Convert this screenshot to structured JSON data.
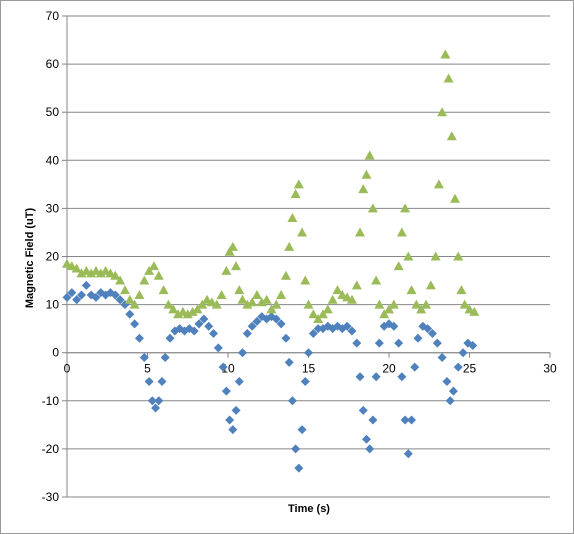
{
  "chart_data": {
    "type": "scatter",
    "title": "",
    "xlabel": "Time (s)",
    "ylabel": "Magnetic Field (uT)",
    "xlim": [
      0,
      30
    ],
    "ylim": [
      -30,
      70
    ],
    "x_ticks": [
      "0",
      "5",
      "10",
      "15",
      "20",
      "25",
      "30"
    ],
    "y_ticks": [
      "-30",
      "-20",
      "-10",
      "0",
      "10",
      "20",
      "30",
      "40",
      "50",
      "60",
      "70"
    ],
    "grid": "horizontal",
    "legend": "none",
    "series": [
      {
        "marker": "diamond",
        "color": "#4F81BD",
        "points": [
          [
            0.0,
            11.5
          ],
          [
            0.3,
            12.5
          ],
          [
            0.6,
            11.0
          ],
          [
            0.9,
            12.0
          ],
          [
            1.2,
            14.0
          ],
          [
            1.5,
            12.0
          ],
          [
            1.8,
            11.5
          ],
          [
            2.1,
            12.5
          ],
          [
            2.4,
            12.0
          ],
          [
            2.7,
            12.5
          ],
          [
            3.0,
            12.0
          ],
          [
            3.3,
            11.0
          ],
          [
            3.6,
            10.0
          ],
          [
            3.9,
            8.0
          ],
          [
            4.2,
            6.0
          ],
          [
            4.5,
            3.0
          ],
          [
            4.8,
            -1.0
          ],
          [
            5.1,
            -6.0
          ],
          [
            5.3,
            -10.0
          ],
          [
            5.5,
            -11.5
          ],
          [
            5.7,
            -10.0
          ],
          [
            5.9,
            -6.0
          ],
          [
            6.1,
            -1.0
          ],
          [
            6.4,
            3.0
          ],
          [
            6.7,
            4.5
          ],
          [
            7.0,
            5.0
          ],
          [
            7.3,
            4.5
          ],
          [
            7.6,
            5.0
          ],
          [
            7.9,
            4.5
          ],
          [
            8.2,
            6.0
          ],
          [
            8.5,
            7.0
          ],
          [
            8.8,
            5.5
          ],
          [
            9.1,
            4.0
          ],
          [
            9.4,
            1.0
          ],
          [
            9.7,
            -3.0
          ],
          [
            9.9,
            -8.0
          ],
          [
            10.1,
            -14.0
          ],
          [
            10.3,
            -16.0
          ],
          [
            10.5,
            -12.0
          ],
          [
            10.7,
            -6.0
          ],
          [
            10.9,
            0.0
          ],
          [
            11.2,
            4.0
          ],
          [
            11.5,
            5.5
          ],
          [
            11.8,
            6.5
          ],
          [
            12.1,
            7.5
          ],
          [
            12.4,
            7.0
          ],
          [
            12.7,
            7.5
          ],
          [
            13.0,
            7.0
          ],
          [
            13.3,
            6.0
          ],
          [
            13.6,
            3.0
          ],
          [
            13.8,
            -2.0
          ],
          [
            14.0,
            -10.0
          ],
          [
            14.2,
            -20.0
          ],
          [
            14.4,
            -24.0
          ],
          [
            14.6,
            -16.0
          ],
          [
            14.8,
            -6.0
          ],
          [
            15.0,
            0.0
          ],
          [
            15.3,
            4.0
          ],
          [
            15.6,
            5.0
          ],
          [
            15.9,
            5.0
          ],
          [
            16.2,
            5.5
          ],
          [
            16.5,
            5.0
          ],
          [
            16.8,
            5.5
          ],
          [
            17.1,
            5.0
          ],
          [
            17.4,
            5.5
          ],
          [
            17.7,
            4.5
          ],
          [
            18.0,
            2.0
          ],
          [
            18.2,
            -5.0
          ],
          [
            18.4,
            -12.0
          ],
          [
            18.6,
            -18.0
          ],
          [
            18.8,
            -20.0
          ],
          [
            19.0,
            -14.0
          ],
          [
            19.2,
            -5.0
          ],
          [
            19.4,
            2.0
          ],
          [
            19.7,
            5.5
          ],
          [
            20.0,
            6.0
          ],
          [
            20.3,
            5.5
          ],
          [
            20.6,
            2.0
          ],
          [
            20.8,
            -5.0
          ],
          [
            21.0,
            -14.0
          ],
          [
            21.2,
            -21.0
          ],
          [
            21.4,
            -14.0
          ],
          [
            21.6,
            -3.0
          ],
          [
            21.8,
            3.0
          ],
          [
            22.1,
            5.5
          ],
          [
            22.4,
            5.0
          ],
          [
            22.7,
            4.0
          ],
          [
            23.0,
            2.0
          ],
          [
            23.3,
            -1.0
          ],
          [
            23.6,
            -6.0
          ],
          [
            23.8,
            -10.0
          ],
          [
            24.0,
            -8.0
          ],
          [
            24.3,
            -3.0
          ],
          [
            24.6,
            0.0
          ],
          [
            24.9,
            2.0
          ],
          [
            25.2,
            1.5
          ]
        ]
      },
      {
        "marker": "triangle",
        "color": "#9BBB59",
        "points": [
          [
            0.0,
            18.5
          ],
          [
            0.3,
            18.0
          ],
          [
            0.6,
            17.5
          ],
          [
            0.9,
            16.5
          ],
          [
            1.2,
            17.0
          ],
          [
            1.5,
            16.5
          ],
          [
            1.8,
            17.0
          ],
          [
            2.1,
            16.5
          ],
          [
            2.4,
            17.0
          ],
          [
            2.7,
            16.5
          ],
          [
            3.0,
            16.0
          ],
          [
            3.3,
            15.0
          ],
          [
            3.6,
            13.0
          ],
          [
            3.9,
            11.0
          ],
          [
            4.2,
            10.0
          ],
          [
            4.5,
            12.0
          ],
          [
            4.8,
            15.0
          ],
          [
            5.1,
            17.0
          ],
          [
            5.4,
            18.0
          ],
          [
            5.7,
            16.0
          ],
          [
            6.0,
            13.0
          ],
          [
            6.3,
            10.0
          ],
          [
            6.6,
            9.0
          ],
          [
            6.9,
            8.0
          ],
          [
            7.2,
            8.5
          ],
          [
            7.5,
            8.0
          ],
          [
            7.8,
            8.5
          ],
          [
            8.1,
            9.0
          ],
          [
            8.4,
            10.0
          ],
          [
            8.7,
            11.0
          ],
          [
            9.0,
            10.5
          ],
          [
            9.3,
            10.0
          ],
          [
            9.6,
            12.0
          ],
          [
            9.9,
            17.0
          ],
          [
            10.1,
            21.0
          ],
          [
            10.3,
            22.0
          ],
          [
            10.5,
            18.0
          ],
          [
            10.7,
            13.0
          ],
          [
            10.9,
            11.0
          ],
          [
            11.2,
            10.0
          ],
          [
            11.5,
            10.5
          ],
          [
            11.8,
            12.0
          ],
          [
            12.1,
            10.5
          ],
          [
            12.4,
            11.0
          ],
          [
            12.7,
            9.0
          ],
          [
            13.0,
            10.0
          ],
          [
            13.3,
            12.0
          ],
          [
            13.6,
            16.0
          ],
          [
            13.8,
            22.0
          ],
          [
            14.0,
            28.0
          ],
          [
            14.2,
            33.0
          ],
          [
            14.4,
            35.0
          ],
          [
            14.6,
            25.0
          ],
          [
            14.8,
            15.0
          ],
          [
            15.0,
            10.0
          ],
          [
            15.3,
            8.0
          ],
          [
            15.6,
            7.0
          ],
          [
            15.9,
            8.0
          ],
          [
            16.2,
            9.0
          ],
          [
            16.5,
            11.0
          ],
          [
            16.8,
            13.0
          ],
          [
            17.1,
            12.0
          ],
          [
            17.4,
            11.5
          ],
          [
            17.7,
            11.0
          ],
          [
            18.0,
            14.0
          ],
          [
            18.2,
            25.0
          ],
          [
            18.4,
            34.0
          ],
          [
            18.6,
            37.0
          ],
          [
            18.8,
            41.0
          ],
          [
            19.0,
            30.0
          ],
          [
            19.2,
            15.0
          ],
          [
            19.4,
            10.0
          ],
          [
            19.7,
            8.0
          ],
          [
            20.0,
            9.0
          ],
          [
            20.3,
            10.0
          ],
          [
            20.6,
            18.0
          ],
          [
            20.8,
            25.0
          ],
          [
            21.0,
            30.0
          ],
          [
            21.2,
            20.0
          ],
          [
            21.4,
            13.0
          ],
          [
            21.7,
            10.0
          ],
          [
            22.0,
            9.0
          ],
          [
            22.3,
            10.0
          ],
          [
            22.6,
            14.0
          ],
          [
            22.9,
            20.0
          ],
          [
            23.1,
            35.0
          ],
          [
            23.3,
            50.0
          ],
          [
            23.5,
            62.0
          ],
          [
            23.7,
            57.0
          ],
          [
            23.9,
            45.0
          ],
          [
            24.1,
            32.0
          ],
          [
            24.3,
            20.0
          ],
          [
            24.5,
            13.0
          ],
          [
            24.7,
            10.0
          ],
          [
            25.0,
            9.0
          ],
          [
            25.3,
            8.5
          ]
        ]
      }
    ]
  }
}
